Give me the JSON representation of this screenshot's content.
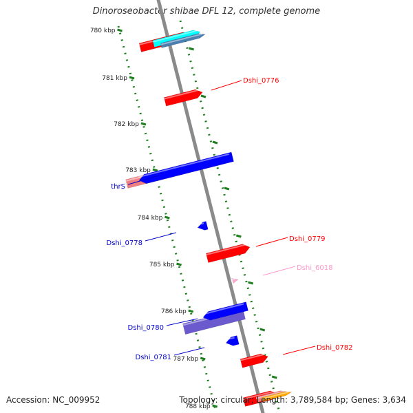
{
  "title": "Dinoroseobacter shibae DFL 12, complete genome",
  "footer": {
    "accession": "Accession: NC_009952",
    "info": "Topology: circular; Length: 3,789,584 bp; Genes: 3,634"
  },
  "colors": {
    "backbone": "#8c8c8c",
    "tick": "#1e7d1e",
    "forward_gene": "#ff0000",
    "reverse_gene": "#0000ff",
    "reverse_gene_light": "#6a5acd",
    "pseudo_gene": "#ffa8d0",
    "salmon": "#f08080",
    "cyan": "#00ffff",
    "steel": "#4a7fb0"
  },
  "ticks": [
    {
      "label": "780 kbp"
    },
    {
      "label": "781 kbp"
    },
    {
      "label": "782 kbp"
    },
    {
      "label": "783 kbp"
    },
    {
      "label": "784 kbp"
    },
    {
      "label": "785 kbp"
    },
    {
      "label": "786 kbp"
    },
    {
      "label": "787 kbp"
    },
    {
      "label": "788 kbp"
    }
  ],
  "gene_labels": [
    {
      "name": "Dshi_0776",
      "color": "#ff0000"
    },
    {
      "name": "thrS",
      "color": "#0000cc"
    },
    {
      "name": "Dshi_0778",
      "color": "#0000cc"
    },
    {
      "name": "Dshi_0779",
      "color": "#ff0000"
    },
    {
      "name": "Dshi_6018",
      "color": "#ff99cc"
    },
    {
      "name": "Dshi_0780",
      "color": "#0000cc"
    },
    {
      "name": "Dshi_0781",
      "color": "#0000cc"
    },
    {
      "name": "Dshi_0782",
      "color": "#ff0000"
    }
  ]
}
